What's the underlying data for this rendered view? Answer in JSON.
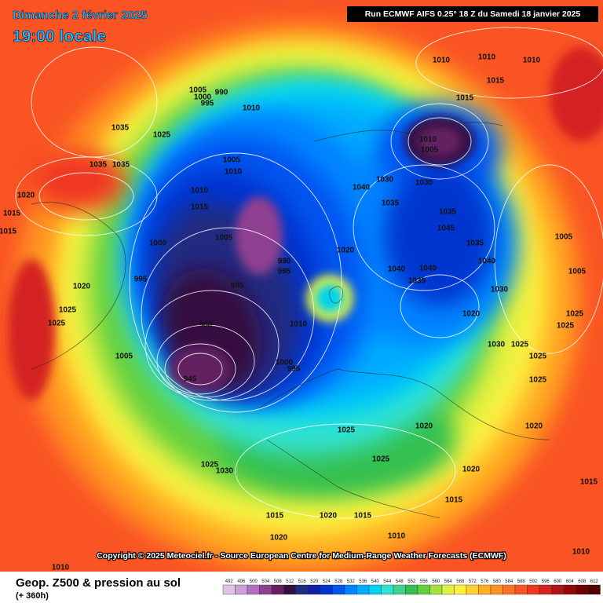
{
  "header": {
    "date": "Dimanche 2 février 2025",
    "time": "19:00 locale",
    "run": "Run ECMWF AIFS 0.25° 18 Z du Samedi 18 janvier 2025"
  },
  "copyright": "Copyright © 2025 Meteociel.fr - Source European Centre for Medium-Range Weather Forecasts (ECMWF)",
  "legend": {
    "title": "Geop. Z500 & pression au sol",
    "subtitle": "(+ 360h)",
    "levels": [
      492,
      496,
      500,
      504,
      508,
      512,
      516,
      520,
      524,
      528,
      532,
      536,
      540,
      544,
      548,
      552,
      556,
      560,
      564,
      568,
      572,
      576,
      580,
      584,
      588,
      592,
      596,
      600,
      604,
      608,
      612
    ],
    "colors": [
      "#e0c4e4",
      "#cba2d6",
      "#b070c0",
      "#904090",
      "#622062",
      "#341040",
      "#202c80",
      "#1020a8",
      "#0034d0",
      "#0054f0",
      "#0084ff",
      "#00acff",
      "#00d2f2",
      "#30e2d2",
      "#40d090",
      "#34c050",
      "#64d040",
      "#a4e040",
      "#e0f040",
      "#fff040",
      "#ffd030",
      "#ffb020",
      "#ff9224",
      "#ff7222",
      "#fa5424",
      "#f03820",
      "#d42420",
      "#b01414",
      "#900808",
      "#700000",
      "#500000"
    ]
  },
  "isobar_labels": [
    1035,
    1025,
    1005,
    990,
    1000,
    995,
    1010,
    1005,
    1010,
    1010,
    1015,
    1005,
    1000,
    995,
    990,
    995,
    985,
    980,
    1005,
    945,
    1000,
    995,
    1010,
    1020,
    1040,
    1030,
    1035,
    1030,
    1010,
    1005,
    1035,
    1045,
    1035,
    1040,
    1040,
    1035,
    1040,
    1020,
    1030,
    1025,
    1030,
    1025,
    1020,
    1020,
    1025,
    1025,
    1020,
    1025,
    1030,
    1015,
    1020,
    1015,
    1020,
    1010,
    1015,
    1015,
    1010,
    1010,
    1010,
    1010,
    1015,
    1015,
    1035,
    1035,
    1020,
    1015,
    1015,
    1020,
    1025,
    1025,
    1005,
    1005,
    1025,
    1025,
    1025,
    1010
  ]
}
